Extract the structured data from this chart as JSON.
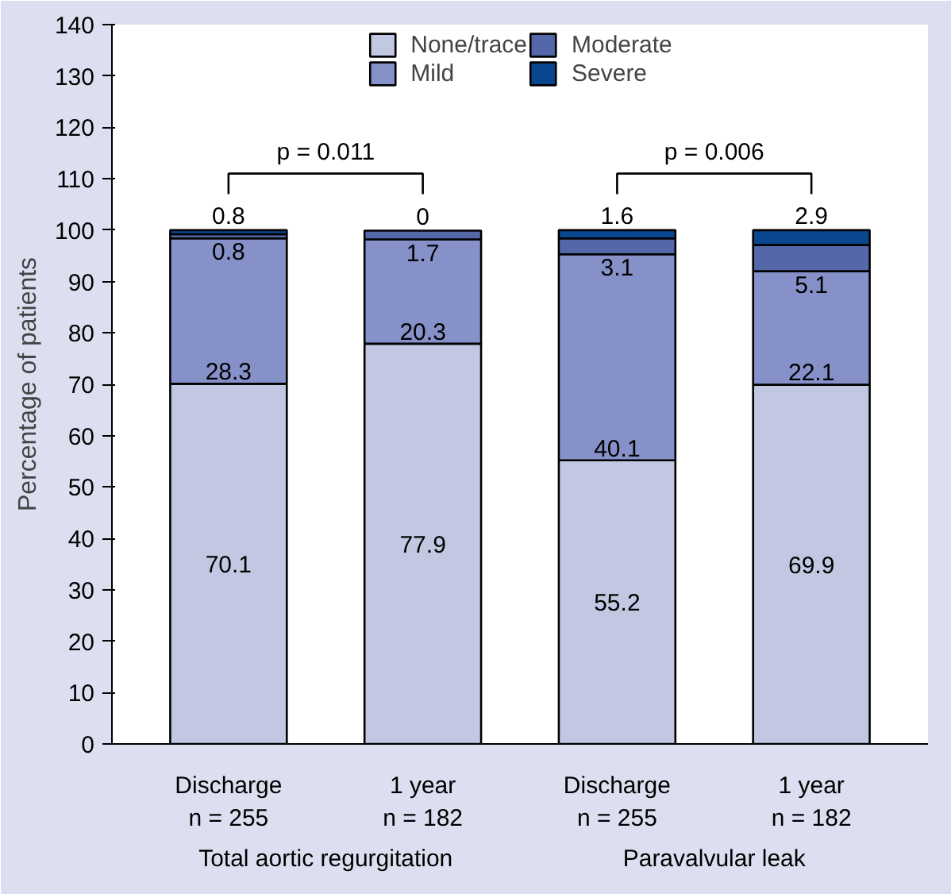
{
  "chart_data": {
    "type": "bar",
    "stacked": true,
    "ylabel": "Percentage of patients",
    "categories": [
      "Discharge\nn = 255",
      "1 year\nn = 182",
      "Discharge\nn = 255",
      "1 year\nn = 182"
    ],
    "series": [
      {
        "name": "None/trace",
        "color": "#c3c8e2",
        "values": [
          70.1,
          77.9,
          55.2,
          69.9
        ]
      },
      {
        "name": "Mild",
        "color": "#8591c8",
        "values": [
          28.3,
          20.3,
          40.1,
          22.1
        ]
      },
      {
        "name": "Moderate",
        "color": "#5467a8",
        "values": [
          0.8,
          1.7,
          3.1,
          5.1
        ]
      },
      {
        "name": "Severe",
        "color": "#0a4790",
        "values": [
          0.8,
          0,
          1.6,
          2.9
        ]
      }
    ],
    "data_labels": true,
    "ylim": [
      0,
      140
    ],
    "yticks": [
      0,
      10,
      20,
      30,
      40,
      50,
      60,
      70,
      80,
      90,
      100,
      110,
      120,
      130,
      140
    ],
    "grid": false,
    "legend": "top",
    "annotations": [
      "p = 0.011",
      "p = 0.006",
      "Total aortic regurgitation",
      "Paravalvular leak"
    ]
  }
}
